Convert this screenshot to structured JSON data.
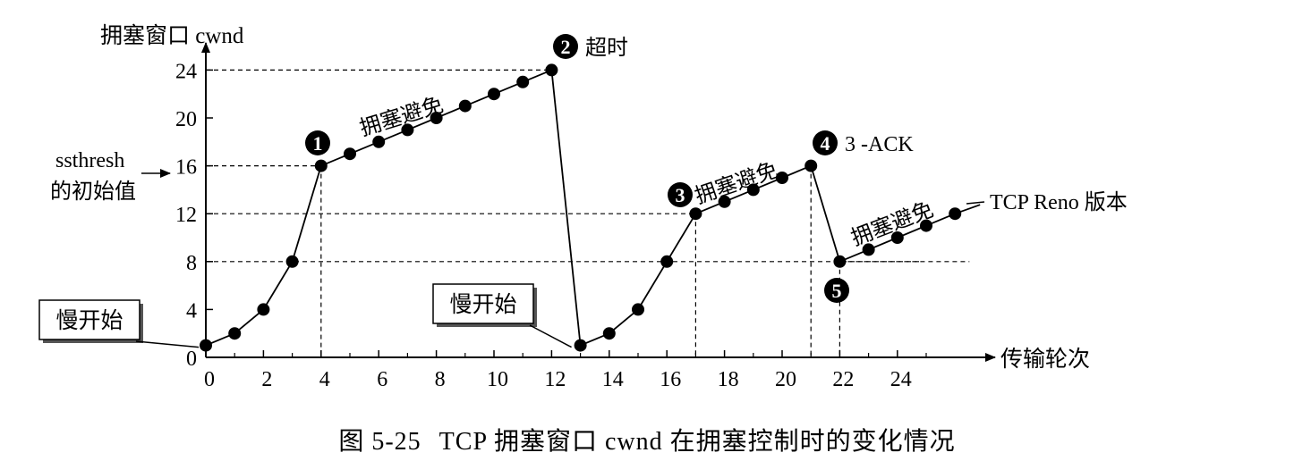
{
  "chart_data": {
    "type": "line",
    "ylabel": "拥塞窗口 cwnd",
    "xlabel": "传输轮次",
    "x_ticks": [
      0,
      2,
      4,
      6,
      8,
      10,
      12,
      14,
      16,
      18,
      20,
      22,
      24
    ],
    "y_ticks": [
      0,
      4,
      8,
      12,
      16,
      20,
      24
    ],
    "xlim": [
      0,
      27
    ],
    "ylim": [
      0,
      26
    ],
    "series": [
      {
        "name": "",
        "points": [
          [
            0,
            1
          ],
          [
            1,
            2
          ],
          [
            2,
            4
          ],
          [
            3,
            8
          ],
          [
            4,
            16
          ],
          [
            5,
            17
          ],
          [
            6,
            18
          ],
          [
            7,
            19
          ],
          [
            8,
            20
          ],
          [
            9,
            21
          ],
          [
            10,
            22
          ],
          [
            11,
            23
          ],
          [
            12,
            24
          ],
          [
            13,
            1
          ],
          [
            14,
            2
          ],
          [
            15,
            4
          ],
          [
            16,
            8
          ],
          [
            17,
            12
          ],
          [
            18,
            13
          ],
          [
            19,
            14
          ],
          [
            20,
            15
          ],
          [
            21,
            16
          ],
          [
            22,
            8
          ],
          [
            23,
            9
          ],
          [
            24,
            10
          ],
          [
            25,
            11
          ],
          [
            26,
            12
          ]
        ]
      }
    ],
    "dashed_h": [
      24,
      16,
      12,
      8
    ],
    "dashed_v": [
      4,
      17,
      21,
      22
    ],
    "ssthresh_line1": "ssthresh",
    "ssthresh_line2": "的初始值",
    "annotations": [
      {
        "num": "1",
        "text": "",
        "x": 4,
        "y": 16
      },
      {
        "num": "2",
        "text": "超时",
        "x": 12,
        "y": 24
      },
      {
        "num": "3",
        "text": "",
        "x": 17,
        "y": 12
      },
      {
        "num": "4",
        "text": "3 -ACK",
        "x": 21,
        "y": 16
      },
      {
        "num": "5",
        "text": "",
        "x": 22,
        "y": 8
      }
    ],
    "phase_labels": [
      "拥塞避免",
      "拥塞避免",
      "拥塞避免"
    ],
    "slow_start_labels": [
      "慢开始",
      "慢开始"
    ],
    "version_label": "TCP Reno 版本"
  },
  "caption": {
    "fig": "图 5-25",
    "text": "TCP 拥塞窗口 cwnd 在拥塞控制时的变化情况"
  }
}
